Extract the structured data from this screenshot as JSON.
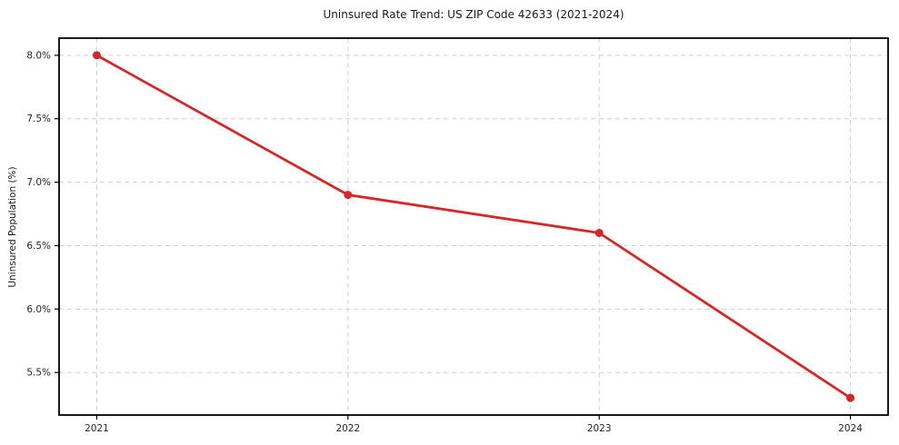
{
  "chart_data": {
    "type": "line",
    "title": "Uninsured Rate Trend: US ZIP Code 42633 (2021-2024)",
    "xlabel": "",
    "ylabel": "Uninsured Population (%)",
    "x": [
      2021,
      2022,
      2023,
      2024
    ],
    "x_tick_labels": [
      "2021",
      "2022",
      "2023",
      "2024"
    ],
    "series": [
      {
        "name": "Uninsured Population (%)",
        "values": [
          8.0,
          6.9,
          6.6,
          5.3
        ]
      }
    ],
    "y_ticks": [
      5.5,
      6.0,
      6.5,
      7.0,
      7.5,
      8.0
    ],
    "y_tick_labels": [
      "5.5%",
      "6.0%",
      "6.5%",
      "7.0%",
      "7.5%",
      "8.0%"
    ],
    "xlim": [
      2020.85,
      2024.15
    ],
    "ylim": [
      5.165,
      8.135
    ],
    "grid": true,
    "legend": "none",
    "line_color": "#d62728",
    "marker": "circle",
    "grid_color": "#cfcfcf",
    "spine_color": "#000000",
    "background": "#ffffff"
  }
}
